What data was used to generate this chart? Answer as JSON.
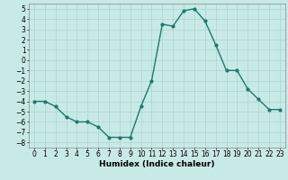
{
  "x": [
    0,
    1,
    2,
    3,
    4,
    5,
    6,
    7,
    8,
    9,
    10,
    11,
    12,
    13,
    14,
    15,
    16,
    17,
    18,
    19,
    20,
    21,
    22,
    23
  ],
  "y": [
    -4,
    -4,
    -4.5,
    -5.5,
    -6,
    -6,
    -6.5,
    -7.5,
    -7.5,
    -7.5,
    -4.5,
    -2,
    3.5,
    3.3,
    4.8,
    5,
    3.8,
    1.5,
    -1,
    -1,
    -2.8,
    -3.8,
    -4.8,
    -4.8
  ],
  "line_color": "#1a7a6e",
  "marker": "o",
  "marker_size": 2.0,
  "bg_color": "#c8eae6",
  "grid_color": "#b0d8d4",
  "xlabel": "Humidex (Indice chaleur)",
  "xlim": [
    -0.5,
    23.5
  ],
  "ylim": [
    -8.5,
    5.5
  ],
  "yticks": [
    -8,
    -7,
    -6,
    -5,
    -4,
    -3,
    -2,
    -1,
    0,
    1,
    2,
    3,
    4,
    5
  ],
  "xticks": [
    0,
    1,
    2,
    3,
    4,
    5,
    6,
    7,
    8,
    9,
    10,
    11,
    12,
    13,
    14,
    15,
    16,
    17,
    18,
    19,
    20,
    21,
    22,
    23
  ],
  "xlabel_fontsize": 6.5,
  "tick_fontsize": 5.5,
  "line_width": 1.0
}
